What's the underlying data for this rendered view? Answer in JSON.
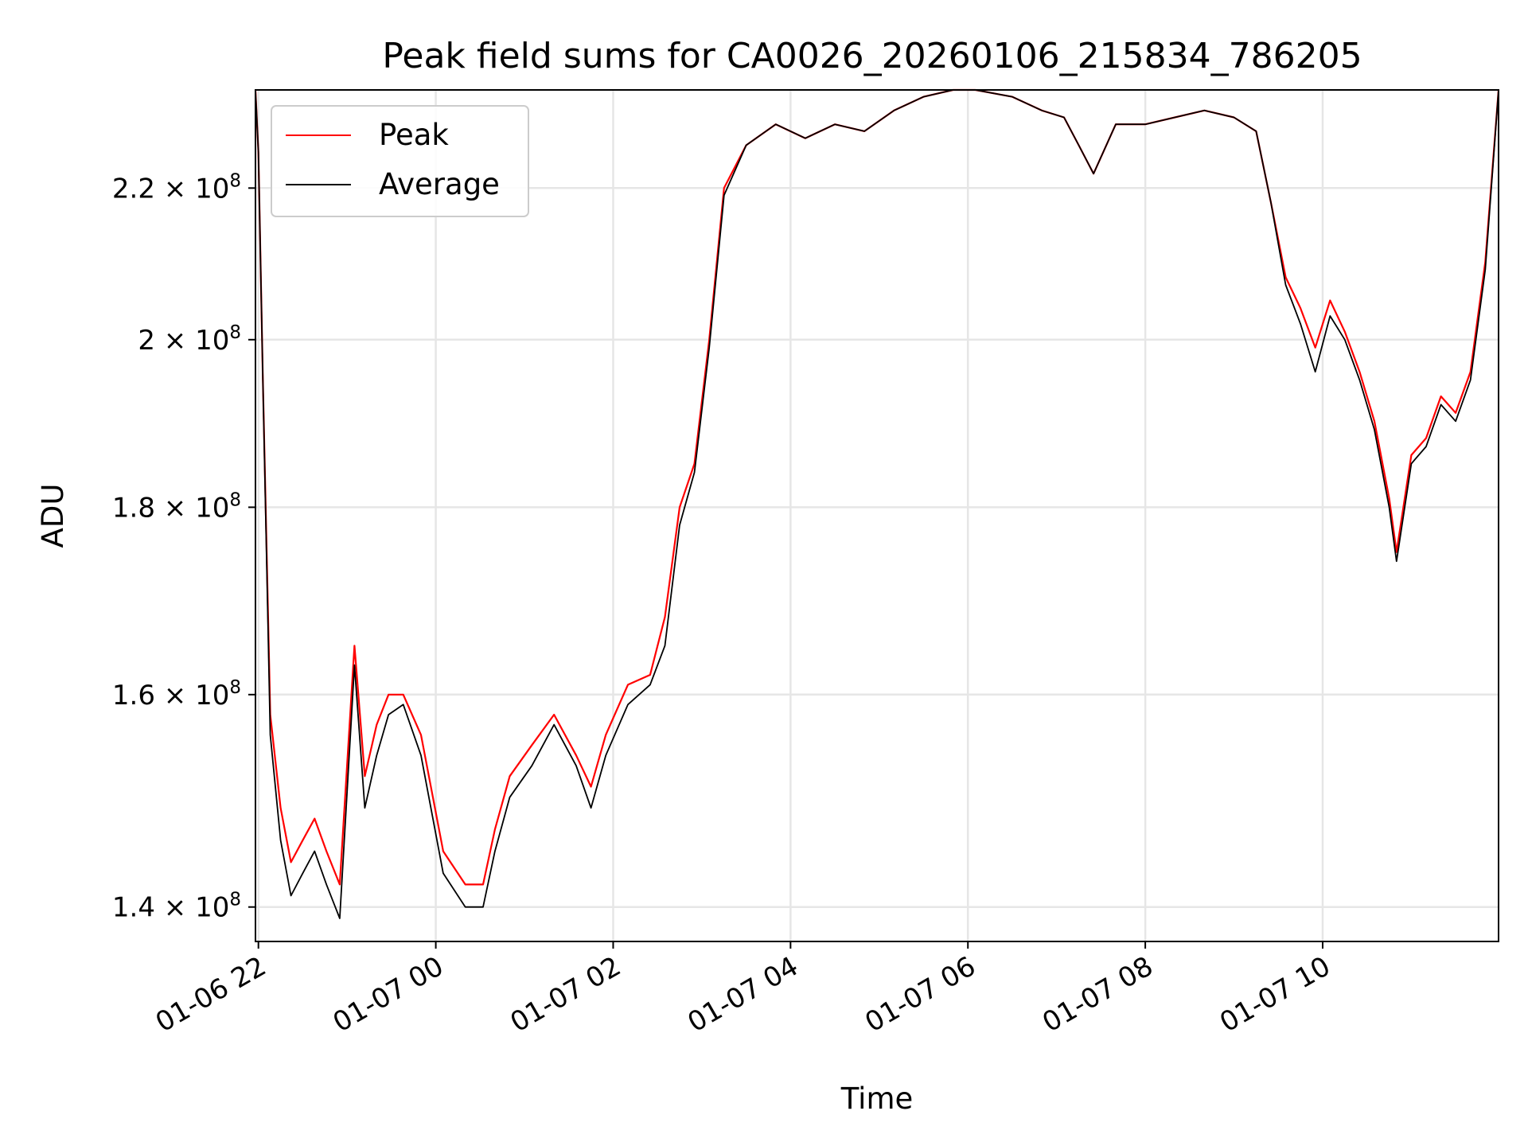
{
  "chart_data": {
    "type": "line",
    "title": "Peak field sums for CA0026_20260106_215834_786205",
    "xlabel": "Time",
    "ylabel": "ADU",
    "x_axis": "time",
    "x_range": [
      "2026-01-06 21:58",
      "2026-01-07 11:59"
    ],
    "x_ticks": [
      "01-06 22",
      "01-07 00",
      "01-07 02",
      "01-07 04",
      "01-07 06",
      "01-07 08",
      "01-07 10"
    ],
    "y_scale": "log",
    "ylim": [
      137000000,
      234000000
    ],
    "y_ticks": [
      {
        "mantissa": "1.4",
        "exp": "8",
        "value": 140000000
      },
      {
        "mantissa": "1.6",
        "exp": "8",
        "value": 160000000
      },
      {
        "mantissa": "1.8",
        "exp": "8",
        "value": 180000000
      },
      {
        "mantissa": "2",
        "exp": "8",
        "value": 200000000
      },
      {
        "mantissa": "2.2",
        "exp": "8",
        "value": 220000000
      }
    ],
    "grid": true,
    "legend_position": "top-left",
    "series": [
      {
        "name": "Peak",
        "color": "#ff0000",
        "x": [
          "2026-01-06 21:58",
          "2026-01-06 22:00",
          "2026-01-06 22:03",
          "2026-01-06 22:08",
          "2026-01-06 22:15",
          "2026-01-06 22:22",
          "2026-01-06 22:30",
          "2026-01-06 22:38",
          "2026-01-06 22:46",
          "2026-01-06 22:55",
          "2026-01-06 23:05",
          "2026-01-06 23:12",
          "2026-01-06 23:20",
          "2026-01-06 23:28",
          "2026-01-06 23:38",
          "2026-01-06 23:50",
          "2026-01-07 00:05",
          "2026-01-07 00:20",
          "2026-01-07 00:32",
          "2026-01-07 00:40",
          "2026-01-07 00:50",
          "2026-01-07 01:05",
          "2026-01-07 01:20",
          "2026-01-07 01:35",
          "2026-01-07 01:45",
          "2026-01-07 01:55",
          "2026-01-07 02:10",
          "2026-01-07 02:25",
          "2026-01-07 02:35",
          "2026-01-07 02:45",
          "2026-01-07 02:55",
          "2026-01-07 03:05",
          "2026-01-07 03:15",
          "2026-01-07 03:30",
          "2026-01-07 03:50",
          "2026-01-07 04:10",
          "2026-01-07 04:30",
          "2026-01-07 04:50",
          "2026-01-07 05:10",
          "2026-01-07 05:30",
          "2026-01-07 05:50",
          "2026-01-07 06:05",
          "2026-01-07 06:30",
          "2026-01-07 06:50",
          "2026-01-07 07:05",
          "2026-01-07 07:15",
          "2026-01-07 07:25",
          "2026-01-07 07:40",
          "2026-01-07 08:00",
          "2026-01-07 08:20",
          "2026-01-07 08:40",
          "2026-01-07 09:00",
          "2026-01-07 09:15",
          "2026-01-07 09:25",
          "2026-01-07 09:35",
          "2026-01-07 09:45",
          "2026-01-07 09:55",
          "2026-01-07 10:05",
          "2026-01-07 10:15",
          "2026-01-07 10:25",
          "2026-01-07 10:35",
          "2026-01-07 10:45",
          "2026-01-07 10:50",
          "2026-01-07 11:00",
          "2026-01-07 11:10",
          "2026-01-07 11:20",
          "2026-01-07 11:30",
          "2026-01-07 11:40",
          "2026-01-07 11:50",
          "2026-01-07 11:59"
        ],
        "y": [
          234000000,
          225000000,
          195000000,
          158000000,
          149000000,
          144000000,
          146000000,
          148000000,
          145000000,
          142000000,
          165000000,
          152000000,
          157000000,
          160000000,
          160000000,
          156000000,
          145000000,
          142000000,
          142000000,
          147000000,
          152000000,
          155000000,
          158000000,
          154000000,
          151000000,
          156000000,
          161000000,
          162000000,
          168000000,
          180000000,
          185000000,
          200000000,
          220000000,
          226000000,
          229000000,
          227000000,
          229000000,
          228000000,
          231000000,
          233000000,
          234000000,
          234000000,
          233000000,
          231000000,
          230000000,
          226000000,
          222000000,
          229000000,
          229000000,
          230000000,
          231000000,
          230000000,
          228000000,
          218000000,
          208000000,
          204000000,
          199000000,
          205000000,
          201000000,
          196000000,
          190000000,
          181000000,
          175000000,
          186000000,
          188000000,
          193000000,
          191000000,
          196000000,
          210000000,
          234000000
        ]
      },
      {
        "name": "Average",
        "color": "#000000",
        "x": [
          "2026-01-06 21:58",
          "2026-01-06 22:00",
          "2026-01-06 22:03",
          "2026-01-06 22:08",
          "2026-01-06 22:15",
          "2026-01-06 22:22",
          "2026-01-06 22:30",
          "2026-01-06 22:38",
          "2026-01-06 22:46",
          "2026-01-06 22:55",
          "2026-01-06 23:05",
          "2026-01-06 23:12",
          "2026-01-06 23:20",
          "2026-01-06 23:28",
          "2026-01-06 23:38",
          "2026-01-06 23:50",
          "2026-01-07 00:05",
          "2026-01-07 00:20",
          "2026-01-07 00:32",
          "2026-01-07 00:40",
          "2026-01-07 00:50",
          "2026-01-07 01:05",
          "2026-01-07 01:20",
          "2026-01-07 01:35",
          "2026-01-07 01:45",
          "2026-01-07 01:55",
          "2026-01-07 02:10",
          "2026-01-07 02:25",
          "2026-01-07 02:35",
          "2026-01-07 02:45",
          "2026-01-07 02:55",
          "2026-01-07 03:05",
          "2026-01-07 03:15",
          "2026-01-07 03:30",
          "2026-01-07 03:50",
          "2026-01-07 04:10",
          "2026-01-07 04:30",
          "2026-01-07 04:50",
          "2026-01-07 05:10",
          "2026-01-07 05:30",
          "2026-01-07 05:50",
          "2026-01-07 06:05",
          "2026-01-07 06:30",
          "2026-01-07 06:50",
          "2026-01-07 07:05",
          "2026-01-07 07:15",
          "2026-01-07 07:25",
          "2026-01-07 07:40",
          "2026-01-07 08:00",
          "2026-01-07 08:20",
          "2026-01-07 08:40",
          "2026-01-07 09:00",
          "2026-01-07 09:15",
          "2026-01-07 09:25",
          "2026-01-07 09:35",
          "2026-01-07 09:45",
          "2026-01-07 09:55",
          "2026-01-07 10:05",
          "2026-01-07 10:15",
          "2026-01-07 10:25",
          "2026-01-07 10:35",
          "2026-01-07 10:45",
          "2026-01-07 10:50",
          "2026-01-07 11:00",
          "2026-01-07 11:10",
          "2026-01-07 11:20",
          "2026-01-07 11:30",
          "2026-01-07 11:40",
          "2026-01-07 11:50",
          "2026-01-07 11:59"
        ],
        "y": [
          234000000,
          225000000,
          195000000,
          156000000,
          146000000,
          141000000,
          143000000,
          145000000,
          142000000,
          139000000,
          163000000,
          149000000,
          154000000,
          158000000,
          159000000,
          154000000,
          143000000,
          140000000,
          140000000,
          145000000,
          150000000,
          153000000,
          157000000,
          153000000,
          149000000,
          154000000,
          159000000,
          161000000,
          165000000,
          178000000,
          184000000,
          199000000,
          219000000,
          226000000,
          229000000,
          227000000,
          229000000,
          228000000,
          231000000,
          233000000,
          234000000,
          234000000,
          233000000,
          231000000,
          230000000,
          226000000,
          222000000,
          229000000,
          229000000,
          230000000,
          231000000,
          230000000,
          228000000,
          218000000,
          207000000,
          202000000,
          196000000,
          203000000,
          200000000,
          195000000,
          189000000,
          180000000,
          174000000,
          185000000,
          187000000,
          192000000,
          190000000,
          195000000,
          209000000,
          234000000
        ]
      }
    ]
  }
}
